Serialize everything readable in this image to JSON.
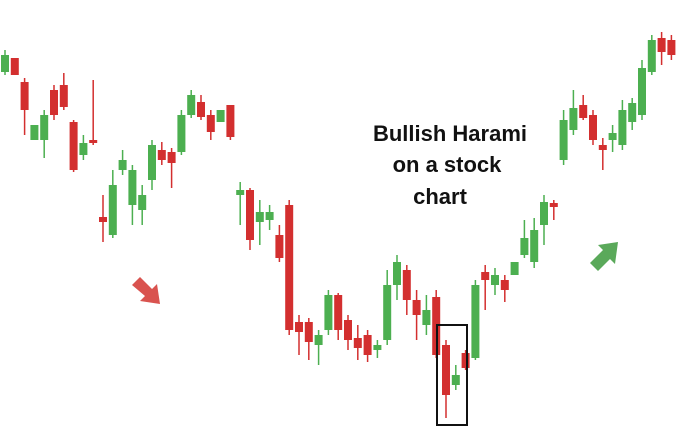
{
  "chart_data": {
    "type": "candlestick",
    "annotation": [
      "Bullish Harami",
      "on a stock",
      "chart"
    ],
    "up_color": "#4caf50",
    "down_color": "#d32f2f",
    "ylim": [
      0,
      448
    ],
    "open": [
      376,
      390,
      366,
      308,
      308,
      358,
      363,
      326,
      293,
      308,
      231,
      213,
      278,
      243,
      238,
      268,
      298,
      296,
      296,
      333,
      346,
      333,
      326,
      343,
      253,
      258,
      226,
      228,
      213,
      243,
      126,
      126,
      103,
      118,
      153,
      128,
      110,
      113,
      98,
      108,
      163,
      178,
      148,
      123,
      151,
      103,
      63,
      95,
      90,
      176,
      163,
      168,
      173,
      193,
      186,
      223,
      245,
      288,
      318,
      343,
      333,
      303,
      308,
      303,
      326,
      333,
      376,
      410,
      408
    ],
    "high": [
      398,
      390,
      370,
      323,
      338,
      363,
      375,
      328,
      313,
      368,
      253,
      278,
      298,
      283,
      263,
      308,
      306,
      300,
      338,
      358,
      353,
      338,
      338,
      343,
      266,
      260,
      248,
      243,
      223,
      248,
      133,
      130,
      118,
      158,
      155,
      133,
      123,
      118,
      108,
      178,
      193,
      183,
      158,
      153,
      158,
      108,
      83,
      98,
      168,
      183,
      180,
      173,
      186,
      228,
      230,
      253,
      248,
      338,
      358,
      353,
      338,
      310,
      323,
      348,
      350,
      388,
      413,
      416,
      413
    ],
    "low": [
      373,
      373,
      313,
      308,
      290,
      328,
      338,
      276,
      288,
      303,
      206,
      210,
      273,
      223,
      223,
      258,
      283,
      260,
      293,
      330,
      328,
      308,
      326,
      308,
      223,
      198,
      203,
      218,
      186,
      113,
      93,
      88,
      83,
      113,
      108,
      98,
      88,
      86,
      90,
      103,
      148,
      133,
      108,
      113,
      90,
      30,
      58,
      78,
      88,
      138,
      153,
      146,
      173,
      190,
      180,
      203,
      228,
      283,
      313,
      328,
      303,
      278,
      296,
      298,
      318,
      328,
      373,
      383,
      388
    ],
    "close": [
      393,
      373,
      338,
      323,
      333,
      333,
      341,
      278,
      305,
      305,
      226,
      263,
      288,
      278,
      253,
      303,
      288,
      285,
      333,
      353,
      331,
      316,
      338,
      311,
      258,
      208,
      236,
      236,
      190,
      118,
      116,
      106,
      113,
      153,
      118,
      108,
      100,
      93,
      103,
      163,
      186,
      148,
      133,
      138,
      93,
      53,
      73,
      80,
      163,
      168,
      173,
      158,
      186,
      210,
      218,
      246,
      241,
      328,
      340,
      330,
      308,
      298,
      315,
      338,
      345,
      380,
      408,
      396,
      393
    ]
  }
}
